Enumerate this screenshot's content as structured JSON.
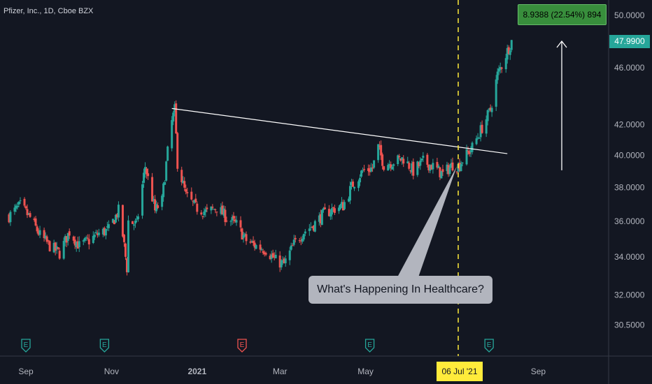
{
  "title": "Pfizer, Inc., 1D, Cboe BZX",
  "price_tag": "47.9900",
  "measure_label": "8.9388 (22.54%) 894",
  "callout_text": "What's Happening In Healthcare?",
  "crosshair_date": "06 Jul '21",
  "colors": {
    "up": "#26a69a",
    "down": "#ef5350",
    "background": "#131722",
    "axis_text": "#b2b5be",
    "trendline": "#ffffff",
    "crosshair": "#ffeb3b"
  },
  "chart_data": {
    "type": "candlestick",
    "title": "Pfizer, Inc., 1D, Cboe BZX",
    "y_axis": {
      "scale": "log",
      "ticks": [
        30.5,
        32,
        34,
        36,
        38,
        40,
        42,
        46,
        50
      ],
      "tick_labels": [
        "30.5000",
        "32.0000",
        "34.0000",
        "36.0000",
        "38.0000",
        "40.0000",
        "42.0000",
        "46.0000",
        "50.0000"
      ]
    },
    "x_axis": {
      "tick_labels": [
        "Sep",
        "Nov",
        "2021",
        "Mar",
        "May",
        "Jul",
        "Sep"
      ]
    },
    "last_price": 47.99,
    "close_path": [
      [
        "2020-08-20",
        36.3
      ],
      [
        "2020-08-28",
        36.9
      ],
      [
        "2020-09-04",
        36.2
      ],
      [
        "2020-09-11",
        35.2
      ],
      [
        "2020-09-18",
        34.6
      ],
      [
        "2020-09-25",
        34.2
      ],
      [
        "2020-10-02",
        35.4
      ],
      [
        "2020-10-09",
        34.6
      ],
      [
        "2020-10-16",
        34.9
      ],
      [
        "2020-10-23",
        35.3
      ],
      [
        "2020-10-30",
        35.5
      ],
      [
        "2020-11-06",
        36.6
      ],
      [
        "2020-11-09",
        35.2
      ],
      [
        "2020-11-12",
        33.4
      ],
      [
        "2020-11-13",
        36.0
      ],
      [
        "2020-11-19",
        35.8
      ],
      [
        "2020-11-25",
        39.3
      ],
      [
        "2020-12-02",
        36.6
      ],
      [
        "2020-12-07",
        37.2
      ],
      [
        "2020-12-11",
        40.2
      ],
      [
        "2020-12-14",
        42.2
      ],
      [
        "2020-12-16",
        43.0
      ],
      [
        "2020-12-18",
        39.5
      ],
      [
        "2020-12-24",
        37.5
      ],
      [
        "2020-12-31",
        36.8
      ],
      [
        "2021-01-08",
        36.5
      ],
      [
        "2021-01-15",
        36.8
      ],
      [
        "2021-01-22",
        36.2
      ],
      [
        "2021-01-29",
        35.8
      ],
      [
        "2021-02-05",
        34.9
      ],
      [
        "2021-02-12",
        34.6
      ],
      [
        "2021-02-19",
        34.4
      ],
      [
        "2021-02-26",
        33.8
      ],
      [
        "2021-03-04",
        33.6
      ],
      [
        "2021-03-11",
        34.7
      ],
      [
        "2021-03-18",
        35.4
      ],
      [
        "2021-03-25",
        35.8
      ],
      [
        "2021-04-01",
        36.4
      ],
      [
        "2021-04-08",
        36.7
      ],
      [
        "2021-04-15",
        36.9
      ],
      [
        "2021-04-22",
        38.2
      ],
      [
        "2021-04-29",
        39.0
      ],
      [
        "2021-05-06",
        39.2
      ],
      [
        "2021-05-10",
        40.5
      ],
      [
        "2021-05-14",
        39.4
      ],
      [
        "2021-05-21",
        39.6
      ],
      [
        "2021-05-28",
        39.8
      ],
      [
        "2021-06-04",
        39.0
      ],
      [
        "2021-06-11",
        39.6
      ],
      [
        "2021-06-18",
        39.3
      ],
      [
        "2021-06-25",
        38.8
      ],
      [
        "2021-07-02",
        39.4
      ],
      [
        "2021-07-06",
        39.3
      ],
      [
        "2021-07-09",
        39.7
      ],
      [
        "2021-07-16",
        40.5
      ],
      [
        "2021-07-23",
        41.8
      ],
      [
        "2021-07-29",
        43.0
      ],
      [
        "2021-08-03",
        45.5
      ],
      [
        "2021-08-06",
        46.2
      ],
      [
        "2021-08-11",
        47.5
      ],
      [
        "2021-08-13",
        47.99
      ]
    ],
    "trendline": {
      "from": [
        "2020-12-14",
        43.1
      ],
      "to": [
        "2021-08-10",
        40.1
      ]
    },
    "measure": {
      "change": 8.9388,
      "percent": 22.54,
      "bars": 894
    },
    "earnings_markers": [
      {
        "date": "2020-09-01",
        "color": "#26a69a"
      },
      {
        "date": "2020-10-27",
        "color": "#26a69a"
      },
      {
        "date": "2021-02-02",
        "color": "#ef5350"
      },
      {
        "date": "2021-05-04",
        "color": "#26a69a"
      },
      {
        "date": "2021-07-28",
        "color": "#26a69a"
      }
    ],
    "annotation": "What's Happening In Healthcare?",
    "crosshair_date": "2021-07-06"
  }
}
